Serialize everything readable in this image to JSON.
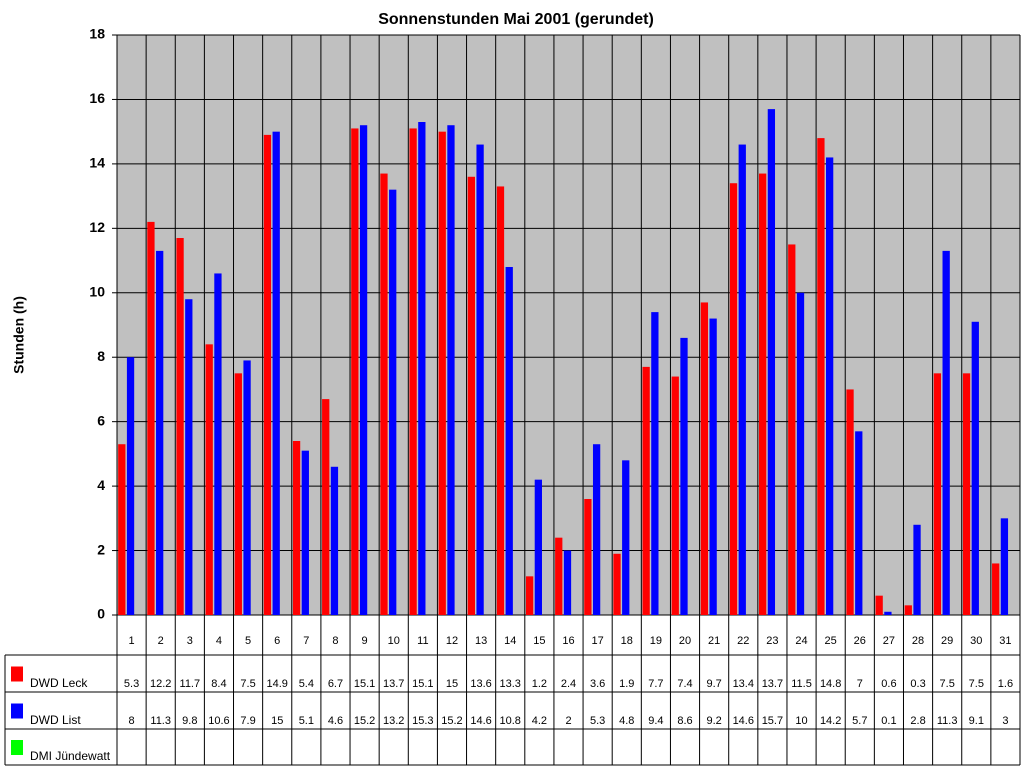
{
  "chart_data": {
    "type": "bar",
    "title": "Sonnenstunden Mai 2001 (gerundet)",
    "y_label": "Stunden (h)",
    "categories": [
      "1",
      "2",
      "3",
      "4",
      "5",
      "6",
      "7",
      "8",
      "9",
      "10",
      "11",
      "12",
      "13",
      "14",
      "15",
      "16",
      "17",
      "18",
      "19",
      "20",
      "21",
      "22",
      "23",
      "24",
      "25",
      "26",
      "27",
      "28",
      "29",
      "30",
      "31"
    ],
    "series": [
      {
        "name": "DWD Leck",
        "color": "#ff0000",
        "values": [
          5.3,
          12.2,
          11.7,
          8.4,
          7.5,
          14.9,
          5.4,
          6.7,
          15.1,
          13.7,
          15.1,
          15,
          13.6,
          13.3,
          1.2,
          2.4,
          3.6,
          1.9,
          7.7,
          7.4,
          9.7,
          13.4,
          13.7,
          11.5,
          14.8,
          7,
          0.6,
          0.3,
          7.5,
          7.5,
          1.6
        ]
      },
      {
        "name": "DWD List",
        "color": "#0000ff",
        "values": [
          8,
          11.3,
          9.8,
          10.6,
          7.9,
          15,
          5.1,
          4.6,
          15.2,
          13.2,
          15.3,
          15.2,
          14.6,
          10.8,
          4.2,
          2,
          5.3,
          4.8,
          9.4,
          8.6,
          9.2,
          14.6,
          15.7,
          10,
          14.2,
          5.7,
          0.1,
          2.8,
          11.3,
          9.1,
          3
        ]
      },
      {
        "name": "DMI Jündewatt",
        "color": "#00ff00",
        "values": [
          null,
          null,
          null,
          null,
          null,
          null,
          null,
          null,
          null,
          null,
          null,
          null,
          null,
          null,
          null,
          null,
          null,
          null,
          null,
          null,
          null,
          null,
          null,
          null,
          null,
          null,
          null,
          null,
          null,
          null,
          null
        ]
      }
    ],
    "ylim": [
      0,
      18
    ],
    "yticks": [
      0,
      2,
      4,
      6,
      8,
      10,
      12,
      14,
      16,
      18
    ],
    "grid": true,
    "plot_background": "#c0c0c0"
  }
}
